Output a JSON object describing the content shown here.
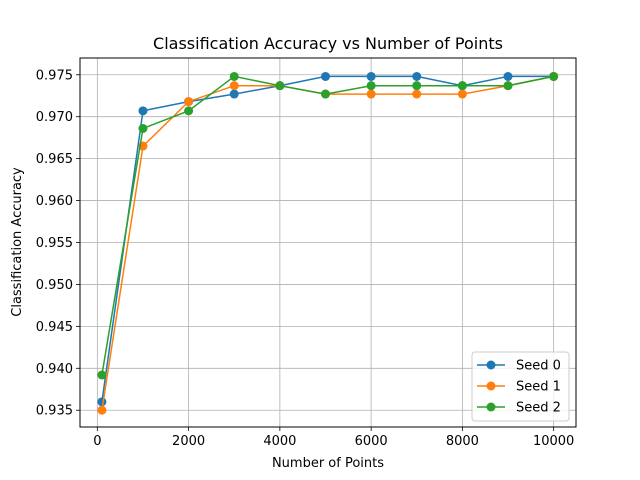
{
  "chart_data": {
    "type": "line",
    "title": "Classification Accuracy vs Number of Points",
    "xlabel": "Number of Points",
    "ylabel": "Classification Accuracy",
    "x": [
      100,
      1000,
      2000,
      3000,
      4000,
      5000,
      6000,
      7000,
      8000,
      9000,
      10000
    ],
    "series": [
      {
        "name": "Seed 0",
        "color": "#1f77b4",
        "values": [
          0.936,
          0.9707,
          0.9718,
          0.9727,
          0.9737,
          0.9748,
          0.9748,
          0.9748,
          0.9737,
          0.9748,
          0.9748
        ]
      },
      {
        "name": "Seed 1",
        "color": "#ff7f0e",
        "values": [
          0.935,
          0.9665,
          0.9718,
          0.9737,
          0.9737,
          0.9727,
          0.9727,
          0.9727,
          0.9727,
          0.9737,
          0.9748
        ]
      },
      {
        "name": "Seed 2",
        "color": "#2ca02c",
        "values": [
          0.9392,
          0.9686,
          0.9707,
          0.9748,
          0.9737,
          0.9727,
          0.9737,
          0.9737,
          0.9737,
          0.9737,
          0.9748
        ]
      }
    ],
    "xticks": [
      0,
      2000,
      4000,
      6000,
      8000,
      10000
    ],
    "xtick_labels": [
      "0",
      "2000",
      "4000",
      "6000",
      "8000",
      "10000"
    ],
    "yticks": [
      0.935,
      0.94,
      0.945,
      0.95,
      0.955,
      0.96,
      0.965,
      0.97,
      0.975
    ],
    "ytick_labels": [
      "0.935",
      "0.940",
      "0.945",
      "0.950",
      "0.955",
      "0.960",
      "0.965",
      "0.970",
      "0.975"
    ],
    "xlim": [
      -380,
      10490
    ],
    "ylim": [
      0.933,
      0.977
    ],
    "grid": true,
    "legend_position": "lower right"
  }
}
